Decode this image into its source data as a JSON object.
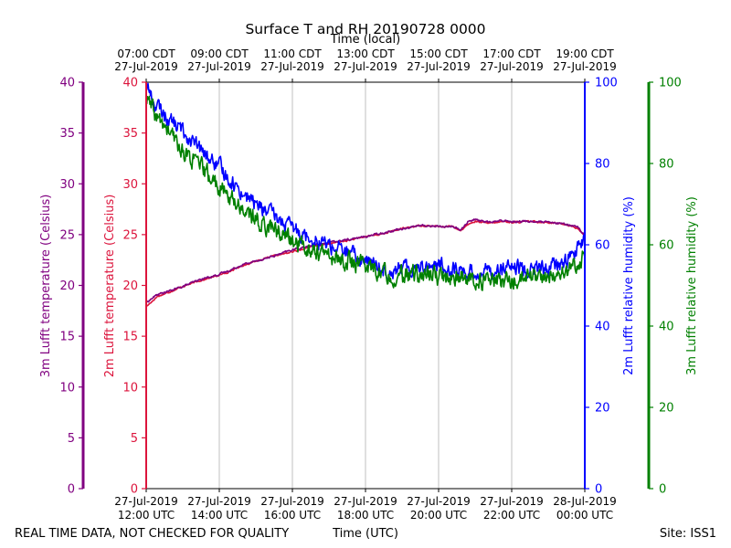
{
  "chart_data": {
    "type": "line",
    "title": "Surface T and RH 20190728 0000",
    "top_axis_label": "Time (local)",
    "bottom_axis_label": "Time (UTC)",
    "footer_left": "REAL TIME DATA, NOT CHECKED FOR QUALITY",
    "footer_right": "Site: ISS1",
    "x_range_hours_utc": [
      12,
      24
    ],
    "bottom_ticks": [
      {
        "hour": 12,
        "date": "27-Jul-2019",
        "time": "12:00 UTC"
      },
      {
        "hour": 14,
        "date": "27-Jul-2019",
        "time": "14:00 UTC"
      },
      {
        "hour": 16,
        "date": "27-Jul-2019",
        "time": "16:00 UTC"
      },
      {
        "hour": 18,
        "date": "27-Jul-2019",
        "time": "18:00 UTC"
      },
      {
        "hour": 20,
        "date": "27-Jul-2019",
        "time": "20:00 UTC"
      },
      {
        "hour": 22,
        "date": "27-Jul-2019",
        "time": "22:00 UTC"
      },
      {
        "hour": 24,
        "date": "28-Jul-2019",
        "time": "00:00 UTC"
      }
    ],
    "top_ticks": [
      {
        "hour": 12,
        "time": "07:00 CDT",
        "date": "27-Jul-2019"
      },
      {
        "hour": 14,
        "time": "09:00 CDT",
        "date": "27-Jul-2019"
      },
      {
        "hour": 16,
        "time": "11:00 CDT",
        "date": "27-Jul-2019"
      },
      {
        "hour": 18,
        "time": "13:00 CDT",
        "date": "27-Jul-2019"
      },
      {
        "hour": 20,
        "time": "15:00 CDT",
        "date": "27-Jul-2019"
      },
      {
        "hour": 22,
        "time": "17:00 CDT",
        "date": "27-Jul-2019"
      },
      {
        "hour": 24,
        "time": "19:00 CDT",
        "date": "27-Jul-2019"
      }
    ],
    "axes": {
      "t3m": {
        "label": "3m Lufft temperature (Celsius)",
        "range": [
          0,
          40
        ],
        "ticks": [
          "0",
          "5",
          "10",
          "15",
          "20",
          "25",
          "30",
          "35",
          "40"
        ],
        "color": "#800080"
      },
      "t2m": {
        "label": "2m Lufft temperature (Celsius)",
        "range": [
          0,
          40
        ],
        "ticks": [
          "0",
          "5",
          "10",
          "15",
          "20",
          "25",
          "30",
          "35",
          "40"
        ],
        "color": "#dc143c"
      },
      "rh2m": {
        "label": "2m Lufft relative humidity (%)",
        "range": [
          0,
          100
        ],
        "ticks": [
          "0",
          "20",
          "40",
          "60",
          "80",
          "100"
        ],
        "color": "#0000ff"
      },
      "rh3m": {
        "label": "3m Lufft relative humidity (%)",
        "range": [
          0,
          100
        ],
        "ticks": [
          "0",
          "20",
          "40",
          "60",
          "80",
          "100"
        ],
        "color": "#008000"
      }
    },
    "series": [
      {
        "name": "2m Lufft temperature",
        "axis": "t2m",
        "color": "#dc143c",
        "noise": 0.06,
        "x": [
          12,
          12.3,
          12.6,
          13,
          13.5,
          14,
          14.3,
          14.6,
          15,
          15.5,
          16,
          16.5,
          17,
          17.5,
          18,
          18.5,
          19,
          19.5,
          20,
          20.4,
          20.6,
          20.8,
          21,
          21.4,
          21.8,
          22,
          22.5,
          23,
          23.5,
          23.8,
          24
        ],
        "y": [
          17.9,
          18.9,
          19.3,
          19.9,
          20.5,
          21.0,
          21.4,
          21.9,
          22.4,
          22.9,
          23.3,
          23.8,
          24.1,
          24.4,
          24.8,
          25.1,
          25.6,
          25.9,
          25.8,
          25.8,
          25.4,
          26.0,
          26.3,
          26.1,
          26.3,
          26.2,
          26.3,
          26.2,
          26.0,
          25.6,
          24.9
        ]
      },
      {
        "name": "3m Lufft temperature",
        "axis": "t3m",
        "color": "#800080",
        "noise": 0.08,
        "x": [
          12,
          12.3,
          12.6,
          13,
          13.5,
          14,
          14.3,
          14.6,
          15,
          15.5,
          16,
          16.5,
          17,
          17.5,
          18,
          18.5,
          19,
          19.5,
          20,
          20.4,
          20.6,
          20.8,
          21,
          21.4,
          21.8,
          22,
          22.5,
          23,
          23.5,
          23.8,
          24
        ],
        "y": [
          18.3,
          19.1,
          19.4,
          19.9,
          20.6,
          21.1,
          21.5,
          22.0,
          22.4,
          22.9,
          23.5,
          23.9,
          24.2,
          24.5,
          24.8,
          25.2,
          25.6,
          25.9,
          25.8,
          25.8,
          25.4,
          26.3,
          26.5,
          26.2,
          26.4,
          26.3,
          26.3,
          26.2,
          26.0,
          25.8,
          24.9
        ]
      },
      {
        "name": "2m Lufft relative humidity",
        "axis": "rh2m",
        "color": "#0000ff",
        "noise": 1.6,
        "x": [
          12,
          12.2,
          12.5,
          13,
          13.5,
          14,
          14.5,
          15,
          15.5,
          16,
          16.5,
          17,
          17.5,
          18,
          18.5,
          19,
          19.5,
          20,
          20.5,
          21,
          21.5,
          22,
          22.5,
          23,
          23.5,
          24
        ],
        "y": [
          100,
          95,
          92,
          88,
          83,
          79,
          74,
          70,
          67,
          64,
          62,
          60,
          58,
          56,
          54,
          54,
          55,
          55,
          54,
          53,
          54,
          54,
          54,
          54,
          56,
          61
        ]
      },
      {
        "name": "3m Lufft relative humidity",
        "axis": "rh3m",
        "color": "#008000",
        "noise": 1.8,
        "x": [
          12,
          12.3,
          12.6,
          13,
          13.5,
          14,
          14.5,
          15,
          15.5,
          16,
          16.5,
          17,
          17.5,
          18,
          18.5,
          19,
          19.5,
          20,
          20.5,
          21,
          21.5,
          22,
          22.5,
          23,
          23.5,
          24
        ],
        "y": [
          96,
          91,
          88,
          83,
          79,
          74,
          70,
          66,
          64,
          61,
          59,
          57,
          56,
          55,
          53,
          52,
          53,
          52,
          52,
          51,
          51,
          51,
          52,
          52,
          53,
          58
        ]
      }
    ]
  }
}
